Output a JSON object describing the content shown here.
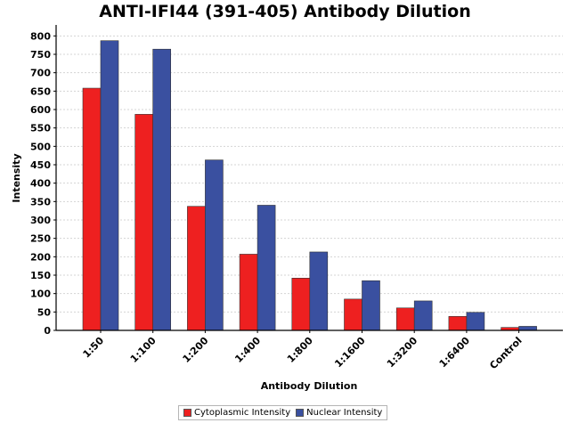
{
  "chart_data": {
    "type": "bar",
    "title": "ANTI-IFI44 (391-405) Antibody Dilution",
    "xlabel": "Antibody Dilution",
    "ylabel": "Intensity",
    "categories": [
      "1:50",
      "1:100",
      "1:200",
      "1:400",
      "1:800",
      "1:1600",
      "1:3200",
      "1:6400",
      "Control"
    ],
    "series": [
      {
        "name": "Cytoplasmic Intensity",
        "color": "#ee2020",
        "values": [
          658,
          587,
          337,
          207,
          142,
          85,
          61,
          38,
          8
        ]
      },
      {
        "name": "Nuclear Intensity",
        "color": "#3a50a0",
        "values": [
          787,
          764,
          463,
          340,
          213,
          135,
          80,
          49,
          11
        ]
      }
    ],
    "ylim": [
      0,
      825
    ],
    "yticks": [
      0,
      50,
      100,
      150,
      200,
      250,
      300,
      350,
      400,
      450,
      500,
      550,
      600,
      650,
      700,
      750,
      800
    ],
    "grid": true,
    "legend_position": "bottom"
  }
}
